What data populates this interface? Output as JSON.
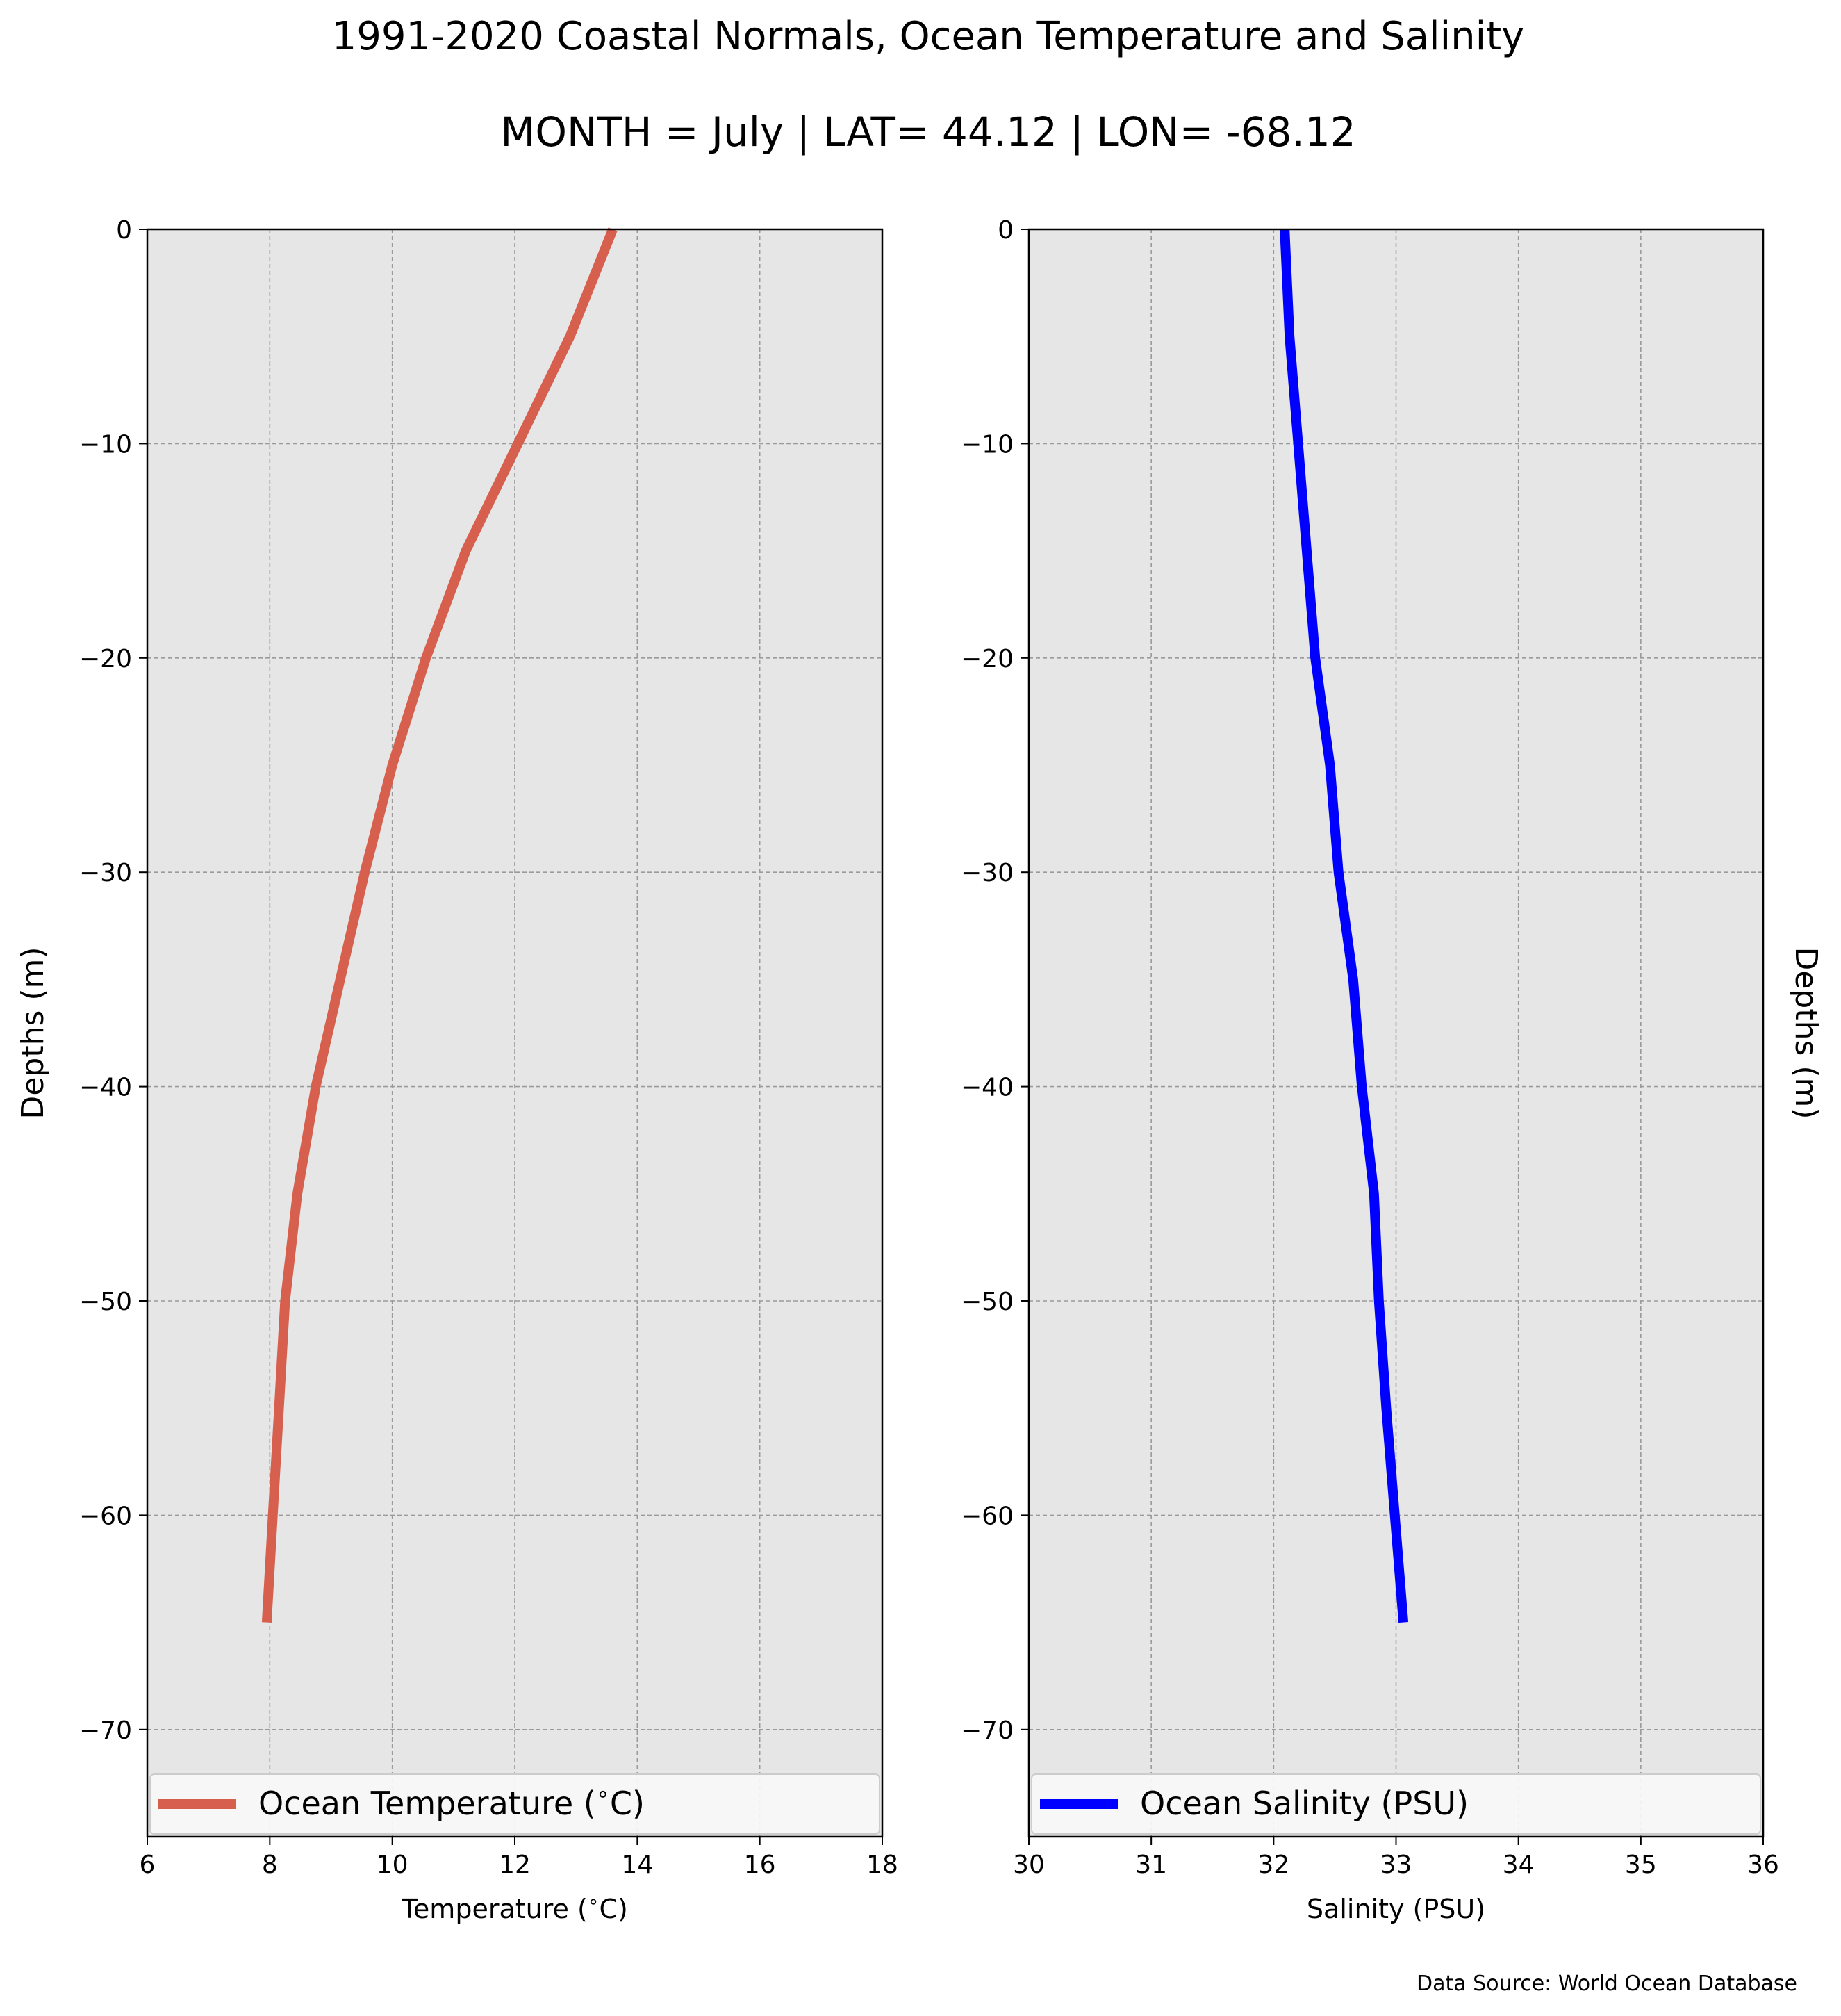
{
  "title": "1991-2020 Coastal Normals, Ocean Temperature and Salinity",
  "subtitle": "MONTH = July | LAT= 44.12 | LON= -68.12",
  "source": "Data Source: World Ocean Database",
  "colors": {
    "background": "#ffffff",
    "plot_background": "#e6e6e6",
    "grid": "#9a9a9a",
    "temperature": "#d65f4d",
    "salinity": "#0000ff"
  },
  "chart_data": [
    {
      "type": "line",
      "xlabel": "Temperature ($^\\circ$C)",
      "ylabel": "Depths (m)",
      "xlim": [
        6,
        18
      ],
      "ylim": [
        -75,
        0
      ],
      "xticks": [
        6,
        8,
        10,
        12,
        14,
        16,
        18
      ],
      "yticks": [
        0,
        -10,
        -20,
        -30,
        -40,
        -50,
        -60,
        -70
      ],
      "xtick_labels": [
        "6",
        "8",
        "10",
        "12",
        "14",
        "16",
        "18"
      ],
      "ytick_labels": [
        "0",
        "−10",
        "−20",
        "−30",
        "−40",
        "−50",
        "−60",
        "−70"
      ],
      "grid": true,
      "legend_placement": "lower center",
      "series": [
        {
          "name": "Ocean Temperature ($^\\circ$C)",
          "color": "#d65f4d",
          "x": [
            13.6,
            12.9,
            12.05,
            11.2,
            10.55,
            10.0,
            9.55,
            9.15,
            8.75,
            8.45,
            8.25,
            8.15,
            8.05,
            7.95
          ],
          "y": [
            0,
            -5,
            -10,
            -15,
            -20,
            -25,
            -30,
            -35,
            -40,
            -45,
            -50,
            -55,
            -60,
            -65
          ]
        }
      ]
    },
    {
      "type": "line",
      "xlabel": "Salinity (PSU)",
      "ylabel": "Depths (m)",
      "xlim": [
        30,
        36
      ],
      "ylim": [
        -75,
        0
      ],
      "xticks": [
        30,
        31,
        32,
        33,
        34,
        35,
        36
      ],
      "yticks": [
        0,
        -10,
        -20,
        -30,
        -40,
        -50,
        -60,
        -70
      ],
      "xtick_labels": [
        "30",
        "31",
        "32",
        "33",
        "34",
        "35",
        "36"
      ],
      "ytick_labels": [
        "0",
        "−10",
        "−20",
        "−30",
        "−40",
        "−50",
        "−60",
        "−70"
      ],
      "grid": true,
      "legend_placement": "lower center",
      "series": [
        {
          "name": "Ocean Salinity (PSU)",
          "color": "#0000ff",
          "x": [
            32.09,
            32.13,
            32.2,
            32.27,
            32.34,
            32.46,
            32.53,
            32.65,
            32.72,
            32.82,
            32.86,
            32.92,
            32.99,
            33.06
          ],
          "y": [
            0,
            -5,
            -10,
            -15,
            -20,
            -25,
            -30,
            -35,
            -40,
            -45,
            -50,
            -55,
            -60,
            -65
          ]
        }
      ]
    }
  ]
}
